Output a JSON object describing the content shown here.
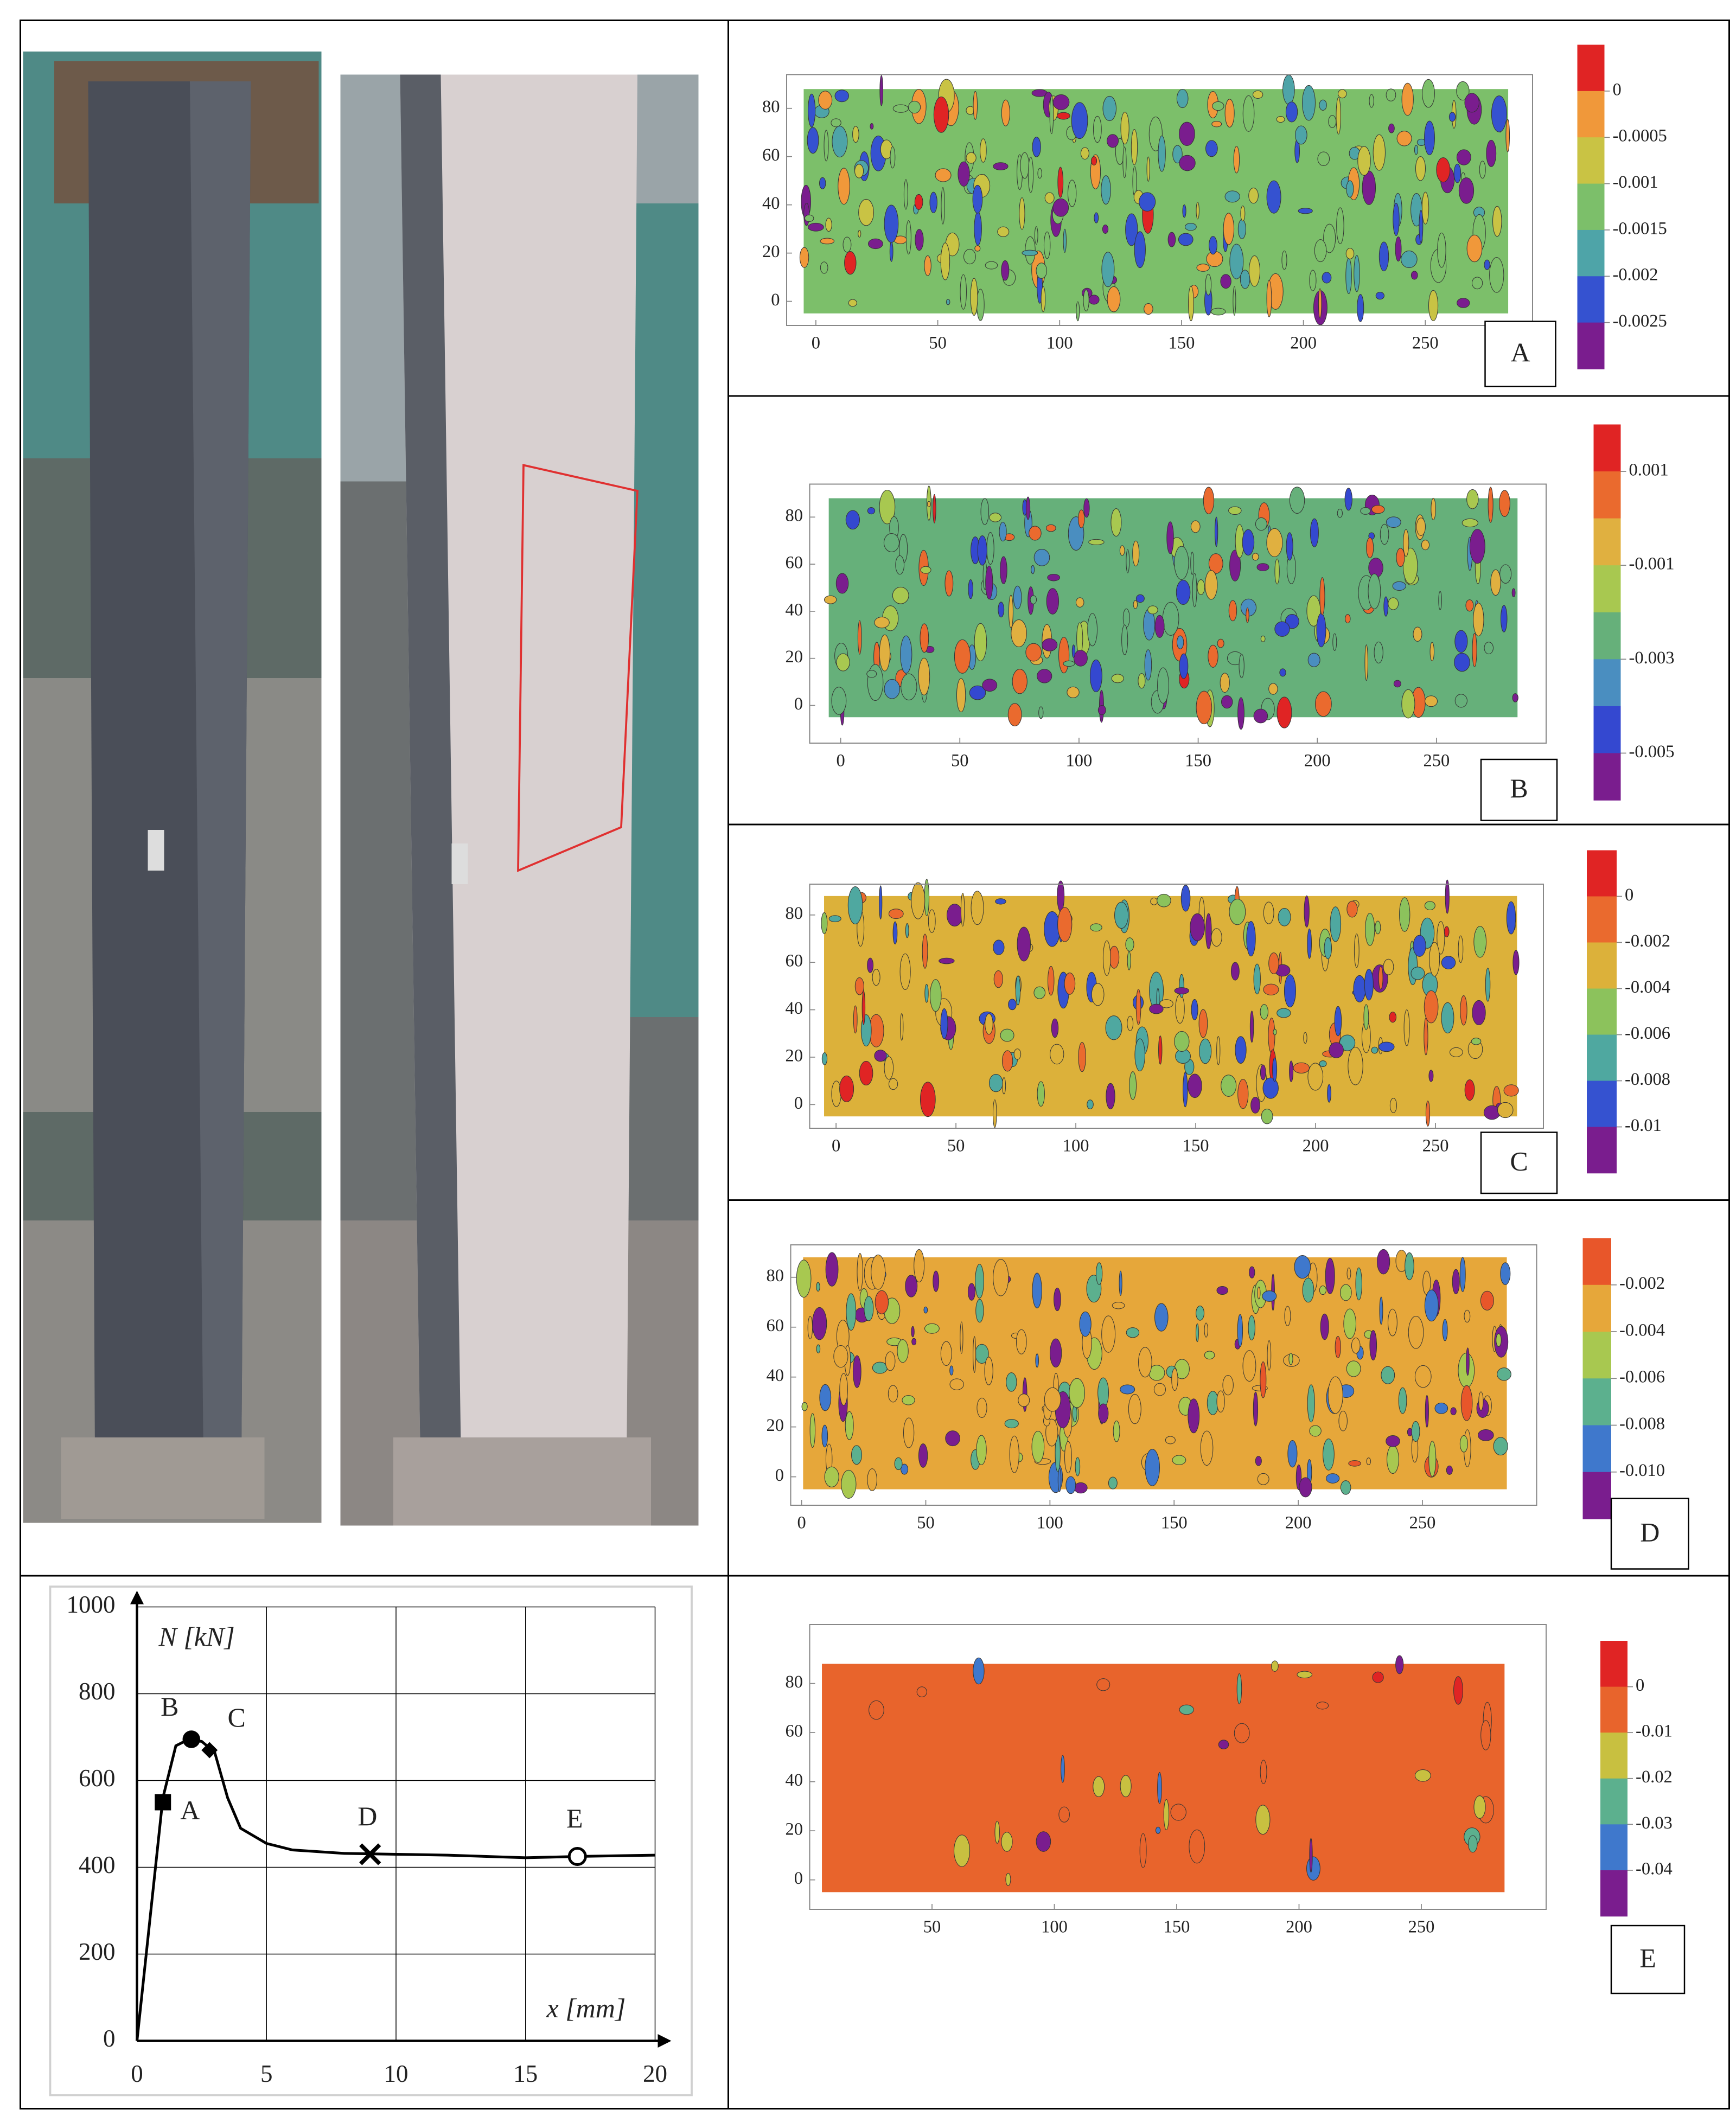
{
  "chart_data": [
    {
      "type": "contour",
      "label": "A",
      "xlim": [
        -12,
        294
      ],
      "ylim": [
        -10,
        94
      ],
      "xticks": [
        0,
        50,
        100,
        150,
        200,
        250
      ],
      "yticks": [
        0,
        20,
        40,
        60,
        80
      ],
      "colorbar": {
        "clim": [
          -0.003,
          0.0005
        ],
        "colors": [
          "#e02424",
          "#f0983a",
          "#c9c344",
          "#7cbf6a",
          "#4ea4a8",
          "#3552d0",
          "#7a1d8e"
        ],
        "ticks": [
          0,
          -0.0005,
          -0.001,
          -0.0015,
          -0.002,
          -0.0025
        ]
      }
    },
    {
      "type": "contour",
      "label": "B",
      "xlim": [
        -13,
        296
      ],
      "ylim": [
        -16,
        94
      ],
      "xticks": [
        0,
        50,
        100,
        150,
        200,
        250
      ],
      "yticks": [
        0,
        20,
        40,
        60,
        80
      ],
      "colorbar": {
        "clim": [
          -0.006,
          0.002
        ],
        "colors": [
          "#e02424",
          "#ea6a2e",
          "#e0b040",
          "#a8c850",
          "#66b07a",
          "#4a8ec0",
          "#3448d0",
          "#7a1d8e"
        ],
        "ticks": [
          0.001,
          -0.001,
          -0.003,
          -0.005
        ]
      }
    },
    {
      "type": "contour",
      "label": "C",
      "xlim": [
        -11,
        295
      ],
      "ylim": [
        -10,
        93
      ],
      "xticks": [
        0,
        50,
        100,
        150,
        200,
        250
      ],
      "yticks": [
        0,
        20,
        40,
        60,
        80
      ],
      "colorbar": {
        "clim": [
          -0.012,
          0.002
        ],
        "colors": [
          "#e02424",
          "#ea6a2e",
          "#dcb13a",
          "#8cc25c",
          "#4fa8a0",
          "#3552d0",
          "#7a1d8e"
        ],
        "ticks": [
          0,
          -0.002,
          -0.004,
          -0.006,
          -0.008,
          -0.01
        ]
      }
    },
    {
      "type": "contour",
      "label": "D",
      "xlim": [
        -4.4,
        296
      ],
      "ylim": [
        -11.4,
        93
      ],
      "xticks": [
        0,
        50,
        100,
        150,
        200,
        250
      ],
      "yticks": [
        0,
        20,
        40,
        60,
        80
      ],
      "colorbar": {
        "clim": [
          -0.012,
          0
        ],
        "colors": [
          "#e8562a",
          "#e6a73a",
          "#a8c850",
          "#5cb08e",
          "#3f78cc",
          "#7a1d8e"
        ],
        "ticks": [
          -0.002,
          -0.004,
          -0.006,
          -0.008,
          {
            "value": -0.01,
            "label": "-0.010"
          }
        ]
      }
    },
    {
      "type": "contour",
      "label": "E",
      "xlim": [
        0,
        301
      ],
      "ylim": [
        -12,
        104
      ],
      "xticks": [
        50,
        100,
        150,
        200,
        250
      ],
      "yticks": [
        0,
        20,
        40,
        60,
        80
      ],
      "colorbar": {
        "clim": [
          -0.05,
          0.01
        ],
        "colors": [
          "#e02424",
          "#e8642c",
          "#c8c040",
          "#5cb08e",
          "#3f78cc",
          "#7a1d8e"
        ],
        "ticks": [
          0,
          -0.01,
          -0.02,
          -0.03,
          -0.04
        ]
      }
    },
    {
      "type": "line",
      "xlim": [
        0,
        20
      ],
      "ylim": [
        0,
        1000
      ],
      "xticks": [
        0,
        5,
        10,
        15,
        20
      ],
      "yticks": [
        0,
        200,
        400,
        600,
        800,
        1000
      ],
      "x_label": "x [mm]",
      "y_label": "N [kN]",
      "grid": true,
      "color": "#000000",
      "x": [
        0,
        0.5,
        1,
        1.5,
        2,
        2.5,
        3,
        3.5,
        4,
        5,
        6,
        8,
        10,
        12,
        15,
        17,
        20
      ],
      "values": [
        0,
        280,
        560,
        680,
        695,
        690,
        665,
        560,
        490,
        455,
        440,
        432,
        430,
        428,
        422,
        425,
        428
      ],
      "points": [
        {
          "label": "A",
          "x": 1,
          "y": 550,
          "marker": "square"
        },
        {
          "label": "B",
          "x": 2.1,
          "y": 695,
          "marker": "circle"
        },
        {
          "label": "C",
          "x": 2.8,
          "y": 670,
          "marker": "diamond"
        },
        {
          "label": "D",
          "x": 9,
          "y": 430,
          "marker": "cross"
        },
        {
          "label": "E",
          "x": 17,
          "y": 425,
          "marker": "open-circle"
        }
      ]
    }
  ]
}
